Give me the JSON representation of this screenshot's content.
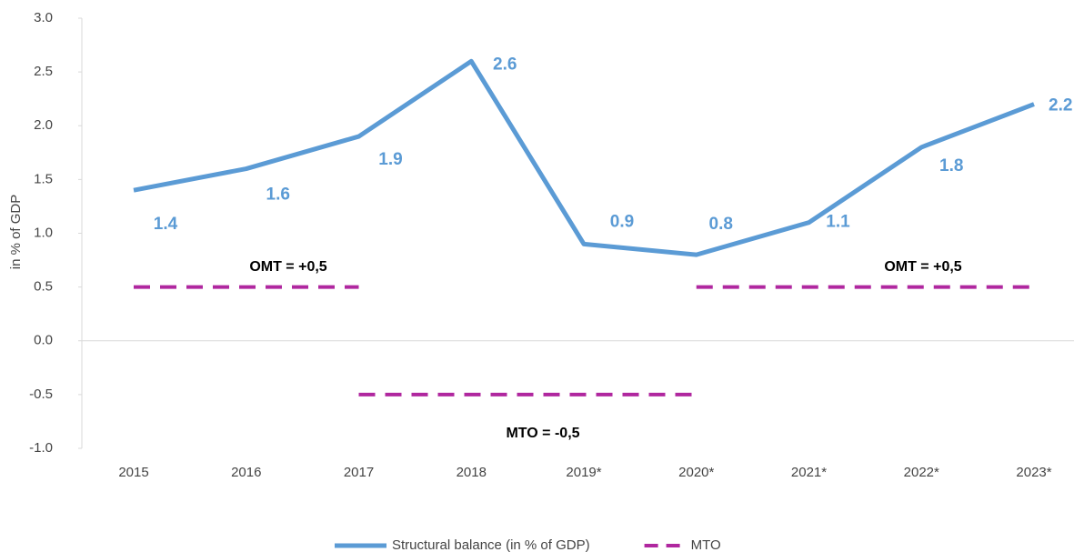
{
  "chart_data": {
    "type": "line",
    "y_label": "in % of GDP",
    "categories": [
      "2015",
      "2016",
      "2017",
      "2018",
      "2019*",
      "2020*",
      "2021*",
      "2022*",
      "2023*"
    ],
    "series": [
      {
        "name": "Structural balance (in % of GDP)",
        "color": "#5b9bd5",
        "values": [
          1.4,
          1.6,
          1.9,
          2.6,
          0.9,
          0.8,
          1.1,
          1.8,
          2.2
        ]
      },
      {
        "name": "MTO",
        "color": "#b0279f",
        "dashed": true,
        "values": [
          0.5,
          0.5,
          0.5,
          null,
          null,
          0.5,
          0.5,
          0.5,
          0.5
        ],
        "values_lower": [
          null,
          null,
          -0.5,
          -0.5,
          -0.5,
          -0.5,
          null,
          null,
          null
        ]
      }
    ],
    "annotations": [
      "OMT = +0,5",
      "OMT = +0,5",
      "MTO = -0,5"
    ],
    "ylim": [
      -1,
      3
    ],
    "yticks": [
      {
        "value": -1,
        "label": "-1.0"
      },
      -0.5,
      {
        "value": 0,
        "label": "0.0"
      },
      0.5,
      {
        "value": 1,
        "label": "1.0"
      },
      1.5,
      {
        "value": 2,
        "label": "2.0"
      },
      2.5,
      {
        "value": 3,
        "label": "3.0"
      }
    ],
    "grid": false,
    "legend": "bottom"
  }
}
